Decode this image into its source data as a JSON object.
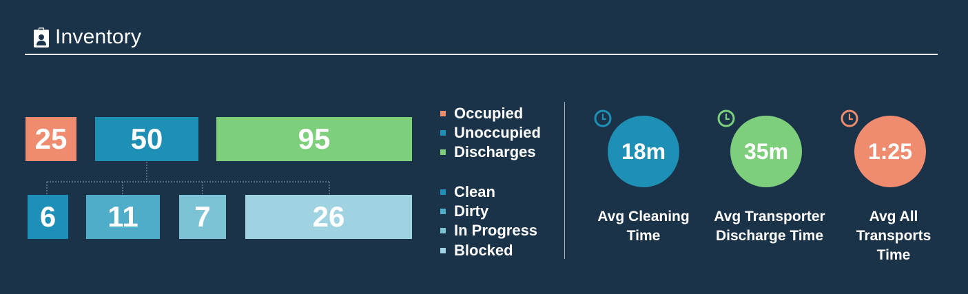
{
  "header": {
    "title": "Inventory",
    "icon": "badge-icon"
  },
  "colors": {
    "background": "#1a3349",
    "occupied": "#ef8c6f",
    "unoccupied": "#1e8fb5",
    "discharges": "#7ecf7b",
    "clean": "#1d8fb8",
    "dirty": "#4fadca",
    "in_progress": "#7cc3d6",
    "blocked": "#9fd3e1"
  },
  "top_row": [
    {
      "id": "occupied",
      "value": "25"
    },
    {
      "id": "unoccupied",
      "value": "50"
    },
    {
      "id": "discharges",
      "value": "95"
    }
  ],
  "bottom_row": [
    {
      "id": "clean",
      "value": "6"
    },
    {
      "id": "dirty",
      "value": "11"
    },
    {
      "id": "in_progress",
      "value": "7"
    },
    {
      "id": "blocked",
      "value": "26"
    }
  ],
  "legend_top": [
    {
      "label": "Occupied",
      "color": "#ef8c6f"
    },
    {
      "label": "Unoccupied",
      "color": "#1e8fb5"
    },
    {
      "label": "Discharges",
      "color": "#7ecf7b"
    }
  ],
  "legend_bottom": [
    {
      "label": "Clean",
      "color": "#1d8fb8"
    },
    {
      "label": "Dirty",
      "color": "#4fadca"
    },
    {
      "label": "In Progress",
      "color": "#7cc3d6"
    },
    {
      "label": "Blocked",
      "color": "#9fd3e1"
    }
  ],
  "metrics": [
    {
      "id": "avg-cleaning",
      "value": "18m",
      "label_lines": [
        "Avg Cleaning",
        "Time"
      ],
      "color": "#1e8fb5"
    },
    {
      "id": "avg-transporter-discharge",
      "value": "35m",
      "label_lines": [
        "Avg Transporter",
        "Discharge Time"
      ],
      "color": "#7ecf7b"
    },
    {
      "id": "avg-all-transports",
      "value": "1:25",
      "label_lines": [
        "Avg All",
        "Transports",
        "Time"
      ],
      "color": "#ef8c6f"
    }
  ]
}
